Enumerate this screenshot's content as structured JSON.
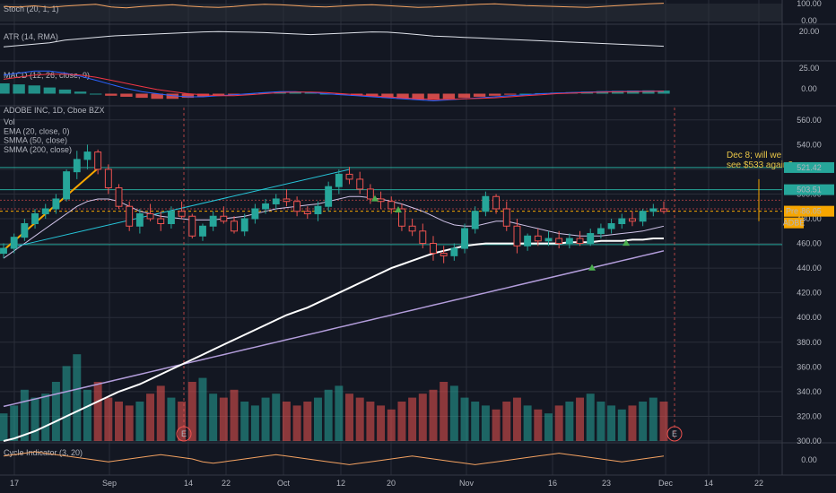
{
  "chart_data": [
    {
      "type": "line",
      "name": "stoch",
      "label": "Stoch (20, 1, 1)",
      "ylim": [
        0,
        100
      ],
      "y_ticks": [
        "100.00",
        "0.00"
      ],
      "series": [
        {
          "color": "#f4a261",
          "values": [
            72,
            70,
            75,
            68,
            74,
            78,
            82,
            70,
            66,
            72,
            76,
            80,
            74,
            70,
            68,
            72,
            78,
            82,
            80,
            76,
            72,
            70,
            74,
            78,
            80,
            76,
            72,
            68,
            70,
            74,
            78,
            82,
            84,
            80,
            76,
            74,
            72,
            70,
            68,
            72,
            76,
            80,
            84,
            86
          ]
        }
      ]
    },
    {
      "type": "line",
      "name": "atr",
      "label": "ATR (14, RMA)",
      "ylim": [
        0,
        25
      ],
      "y_ticks": [
        "20.00"
      ],
      "series": [
        {
          "color": "#e0e3eb",
          "values": [
            9,
            10,
            11,
            12,
            14,
            15,
            16,
            17,
            17.5,
            18,
            18.5,
            19,
            19.5,
            20,
            20.2,
            20,
            19.8,
            19.5,
            19,
            18.5,
            18,
            18.5,
            19,
            19.5,
            20,
            19.8,
            19,
            18,
            17,
            16.5,
            16,
            15.5,
            15,
            14.5,
            14,
            13.5,
            13,
            12.5,
            12,
            11.5,
            11,
            10.5,
            10,
            9.5
          ]
        }
      ]
    },
    {
      "type": "bar",
      "name": "macd",
      "label": "MACD (12, 26, close, 9)",
      "ylim": [
        -10,
        30
      ],
      "y_ticks": [
        "25.00",
        "0.00"
      ],
      "values": [
        10,
        9,
        8,
        6,
        4,
        2,
        0,
        -2,
        -3,
        -4,
        -5,
        -5,
        -4,
        -3,
        -2,
        -1,
        0,
        1,
        2,
        2,
        1,
        0,
        -1,
        -2,
        -3,
        -4,
        -5,
        -6,
        -6,
        -5,
        -4,
        -3,
        -2,
        -1,
        0,
        0.5,
        1,
        1.5,
        2,
        2.5,
        2.8,
        3,
        3.2,
        3
      ],
      "series": [
        {
          "color": "#2962ff",
          "values": [
            18,
            20,
            22,
            22,
            20,
            17,
            13,
            9,
            5,
            2,
            0,
            -2,
            -3,
            -3,
            -2,
            -1,
            0,
            1,
            2,
            2,
            1,
            0,
            -1,
            -2,
            -3,
            -4,
            -5,
            -6,
            -7,
            -6,
            -5,
            -4,
            -3,
            -2,
            -1,
            0,
            0.5,
            1,
            1.5,
            2,
            2.2,
            2.4,
            2.5,
            2.5
          ]
        },
        {
          "color": "#f23645",
          "values": [
            14,
            16,
            18,
            19,
            19,
            18,
            16,
            13,
            10,
            7,
            4,
            2,
            0,
            -1,
            -2,
            -2,
            -1,
            0,
            1,
            1.5,
            1.5,
            1,
            0,
            -1,
            -2,
            -3,
            -4,
            -5,
            -5.5,
            -5.5,
            -5,
            -4.5,
            -4,
            -3,
            -2,
            -1,
            0,
            0.5,
            1,
            1.5,
            1.8,
            2,
            2.2,
            2.4
          ]
        }
      ]
    },
    {
      "type": "candlestick",
      "name": "price",
      "title": "ADOBE INC, 1D, Cboe BZX",
      "legend": [
        "Vol",
        "EMA (20, close, 0)",
        "SMMA (50, close)",
        "SMMA (200, close)"
      ],
      "ylim": [
        300,
        570
      ],
      "y_ticks": [
        "560.00",
        "540.00",
        "520.00",
        "500.00",
        "480.00",
        "460.00",
        "440.00",
        "420.00",
        "400.00",
        "380.00",
        "360.00",
        "340.00",
        "320.00",
        "300.00"
      ],
      "x_ticks": [
        "17",
        "Sep",
        "14",
        "22",
        "Oct",
        "12",
        "20",
        "Nov",
        "16",
        "23",
        "Dec",
        "14",
        "22"
      ],
      "candles": [
        [
          452,
          460,
          448,
          456
        ],
        [
          456,
          468,
          452,
          465
        ],
        [
          465,
          480,
          462,
          476
        ],
        [
          476,
          488,
          472,
          484
        ],
        [
          484,
          492,
          480,
          488
        ],
        [
          488,
          500,
          484,
          496
        ],
        [
          496,
          520,
          494,
          518
        ],
        [
          518,
          535,
          512,
          528
        ],
        [
          528,
          540,
          520,
          534
        ],
        [
          534,
          536,
          516,
          520
        ],
        [
          520,
          524,
          500,
          505
        ],
        [
          505,
          508,
          488,
          490
        ],
        [
          490,
          494,
          470,
          474
        ],
        [
          474,
          488,
          468,
          484
        ],
        [
          484,
          492,
          478,
          480
        ],
        [
          480,
          486,
          470,
          476
        ],
        [
          476,
          490,
          472,
          486
        ],
        [
          486,
          494,
          480,
          482
        ],
        [
          482,
          484,
          464,
          466
        ],
        [
          466,
          476,
          462,
          474
        ],
        [
          474,
          486,
          470,
          482
        ],
        [
          482,
          490,
          476,
          478
        ],
        [
          478,
          482,
          468,
          470
        ],
        [
          470,
          484,
          466,
          480
        ],
        [
          480,
          492,
          476,
          488
        ],
        [
          488,
          496,
          484,
          492
        ],
        [
          492,
          500,
          488,
          496
        ],
        [
          496,
          504,
          490,
          494
        ],
        [
          494,
          498,
          482,
          486
        ],
        [
          486,
          490,
          480,
          484
        ],
        [
          484,
          494,
          478,
          490
        ],
        [
          490,
          510,
          486,
          506
        ],
        [
          506,
          520,
          500,
          516
        ],
        [
          516,
          522,
          508,
          512
        ],
        [
          512,
          518,
          500,
          504
        ],
        [
          504,
          508,
          492,
          496
        ],
        [
          496,
          502,
          488,
          494
        ],
        [
          494,
          498,
          484,
          488
        ],
        [
          488,
          492,
          470,
          474
        ],
        [
          474,
          480,
          466,
          470
        ],
        [
          470,
          476,
          456,
          460
        ],
        [
          460,
          466,
          446,
          452
        ],
        [
          452,
          458,
          444,
          450
        ],
        [
          450,
          460,
          446,
          456
        ],
        [
          456,
          476,
          452,
          472
        ],
        [
          472,
          490,
          468,
          486
        ],
        [
          486,
          502,
          482,
          498
        ],
        [
          498,
          500,
          484,
          488
        ],
        [
          488,
          494,
          470,
          474
        ],
        [
          474,
          480,
          452,
          458
        ],
        [
          458,
          468,
          454,
          466
        ],
        [
          466,
          472,
          458,
          462
        ],
        [
          462,
          470,
          458,
          464
        ],
        [
          464,
          470,
          456,
          460
        ],
        [
          460,
          468,
          456,
          464
        ],
        [
          464,
          470,
          458,
          460
        ],
        [
          460,
          472,
          458,
          468
        ],
        [
          468,
          476,
          464,
          472
        ],
        [
          472,
          480,
          468,
          476
        ],
        [
          476,
          484,
          472,
          480
        ],
        [
          480,
          486,
          474,
          478
        ],
        [
          478,
          488,
          474,
          486
        ],
        [
          486,
          492,
          482,
          488
        ],
        [
          488,
          494,
          484,
          486
        ]
      ],
      "ema20": [
        448,
        454,
        460,
        466,
        472,
        478,
        484,
        490,
        494,
        496,
        496,
        494,
        490,
        486,
        484,
        482,
        481,
        480,
        479,
        479,
        479,
        480,
        481,
        482,
        484,
        486,
        488,
        489,
        490,
        491,
        492,
        494,
        496,
        498,
        498,
        497,
        496,
        494,
        492,
        489,
        486,
        482,
        478,
        475,
        474,
        474,
        476,
        478,
        478,
        476,
        474,
        472,
        470,
        468,
        467,
        466,
        466,
        466,
        467,
        468,
        469,
        470,
        472,
        474
      ],
      "smma50": [
        300,
        302,
        305,
        308,
        312,
        316,
        320,
        324,
        328,
        332,
        336,
        340,
        343,
        346,
        350,
        354,
        358,
        362,
        366,
        370,
        374,
        378,
        382,
        386,
        390,
        394,
        398,
        402,
        405,
        408,
        412,
        416,
        420,
        424,
        428,
        432,
        436,
        440,
        443,
        446,
        449,
        452,
        454,
        456,
        458,
        459,
        460,
        460,
        460,
        460,
        460,
        460,
        460,
        460,
        461,
        461,
        461,
        462,
        462,
        462,
        463,
        463,
        464,
        464
      ],
      "smma200": [
        328,
        330,
        332,
        334,
        336,
        338,
        340,
        342,
        344,
        346,
        348,
        350,
        352,
        354,
        356,
        358,
        360,
        362,
        364,
        366,
        368,
        370,
        372,
        374,
        376,
        378,
        380,
        382,
        384,
        386,
        388,
        390,
        392,
        394,
        396,
        398,
        400,
        402,
        404,
        406,
        408,
        410,
        412,
        414,
        416,
        418,
        420,
        422,
        424,
        426,
        428,
        430,
        432,
        434,
        436,
        438,
        440,
        442,
        444,
        446,
        448,
        450,
        452,
        454
      ],
      "price_tags": [
        {
          "label": "521.42",
          "value": 521.42,
          "color": "#26a69a"
        },
        {
          "label": "503.51",
          "value": 503.51,
          "color": "#26a69a"
        },
        {
          "label": "486.05",
          "value": 486.05,
          "color": "#f7a600"
        },
        {
          "label": "Pre",
          "color": "#f7a600"
        },
        {
          "label": "ADBE",
          "color": "#f7a600"
        }
      ],
      "annotation": {
        "line1": "Dec 8; will we",
        "line2": "see $533 again?"
      }
    },
    {
      "type": "bar",
      "name": "volume",
      "values": [
        14,
        18,
        26,
        22,
        24,
        30,
        38,
        44,
        26,
        30,
        22,
        20,
        18,
        20,
        24,
        28,
        22,
        20,
        30,
        32,
        24,
        22,
        26,
        20,
        18,
        22,
        24,
        20,
        18,
        20,
        22,
        26,
        28,
        24,
        22,
        20,
        18,
        16,
        20,
        22,
        24,
        26,
        30,
        28,
        22,
        20,
        18,
        16,
        20,
        22,
        18,
        16,
        14,
        18,
        20,
        22,
        24,
        20,
        18,
        16,
        18,
        20,
        22,
        20
      ]
    },
    {
      "type": "line",
      "name": "cycle",
      "label": "Cycle Indicator (3, 20)",
      "ylim": [
        -1,
        1
      ],
      "y_ticks": [
        "0.00"
      ],
      "series": [
        {
          "color": "#f4a261",
          "values": [
            0.2,
            0.3,
            0.4,
            0.5,
            0.4,
            0.3,
            0.2,
            0.1,
            0.0,
            -0.1,
            -0.2,
            -0.1,
            0.0,
            0.1,
            0.2,
            0.3,
            0.2,
            0.1,
            0.0,
            -0.2,
            -0.3,
            -0.2,
            -0.1,
            0.0,
            0.1,
            0.2,
            0.3,
            0.2,
            0.1,
            0.0,
            -0.1,
            -0.2,
            -0.3,
            -0.4,
            -0.3,
            -0.2,
            -0.1,
            0.0,
            0.1,
            0.2,
            0.1,
            0.0,
            -0.1,
            -0.2,
            -0.3,
            -0.4,
            -0.3,
            -0.2,
            -0.1,
            0.0,
            0.1,
            0.2,
            0.3,
            0.4,
            0.3,
            0.2,
            0.1,
            0.0,
            -0.1,
            -0.2,
            -0.1,
            0.0,
            0.1,
            0.2
          ]
        }
      ]
    }
  ],
  "colors": {
    "up": "#26a69a",
    "down": "#ef5350",
    "grid": "#2a2e39",
    "bg": "#131722",
    "text": "#b2b5be",
    "orange": "#f7a600"
  }
}
